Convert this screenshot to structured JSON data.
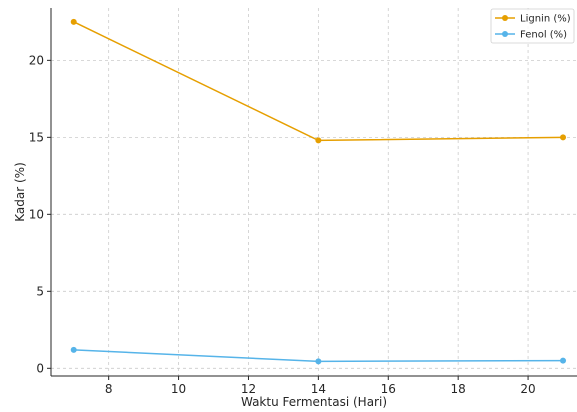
{
  "chart_data": {
    "type": "line",
    "title": "",
    "xlabel": "Waktu Fermentasi (Hari)",
    "ylabel": "Kadar (%)",
    "x": [
      7,
      14,
      21
    ],
    "series": [
      {
        "name": "Lignin (%)",
        "values": [
          22.5,
          14.8,
          15.0
        ],
        "color": "#e69f00"
      },
      {
        "name": "Fenol (%)",
        "values": [
          1.2,
          0.45,
          0.5
        ],
        "color": "#56b4e9"
      }
    ],
    "xlim": [
      6.35,
      21.4
    ],
    "ylim": [
      -0.5,
      23.4
    ],
    "xticks": [
      8,
      10,
      12,
      14,
      16,
      18,
      20
    ],
    "yticks": [
      0,
      5,
      10,
      15,
      20
    ],
    "grid": true,
    "grid_style": "dashed",
    "legend_position": "top-right",
    "axis_color": "#262626",
    "grid_color": "#cccccc"
  }
}
